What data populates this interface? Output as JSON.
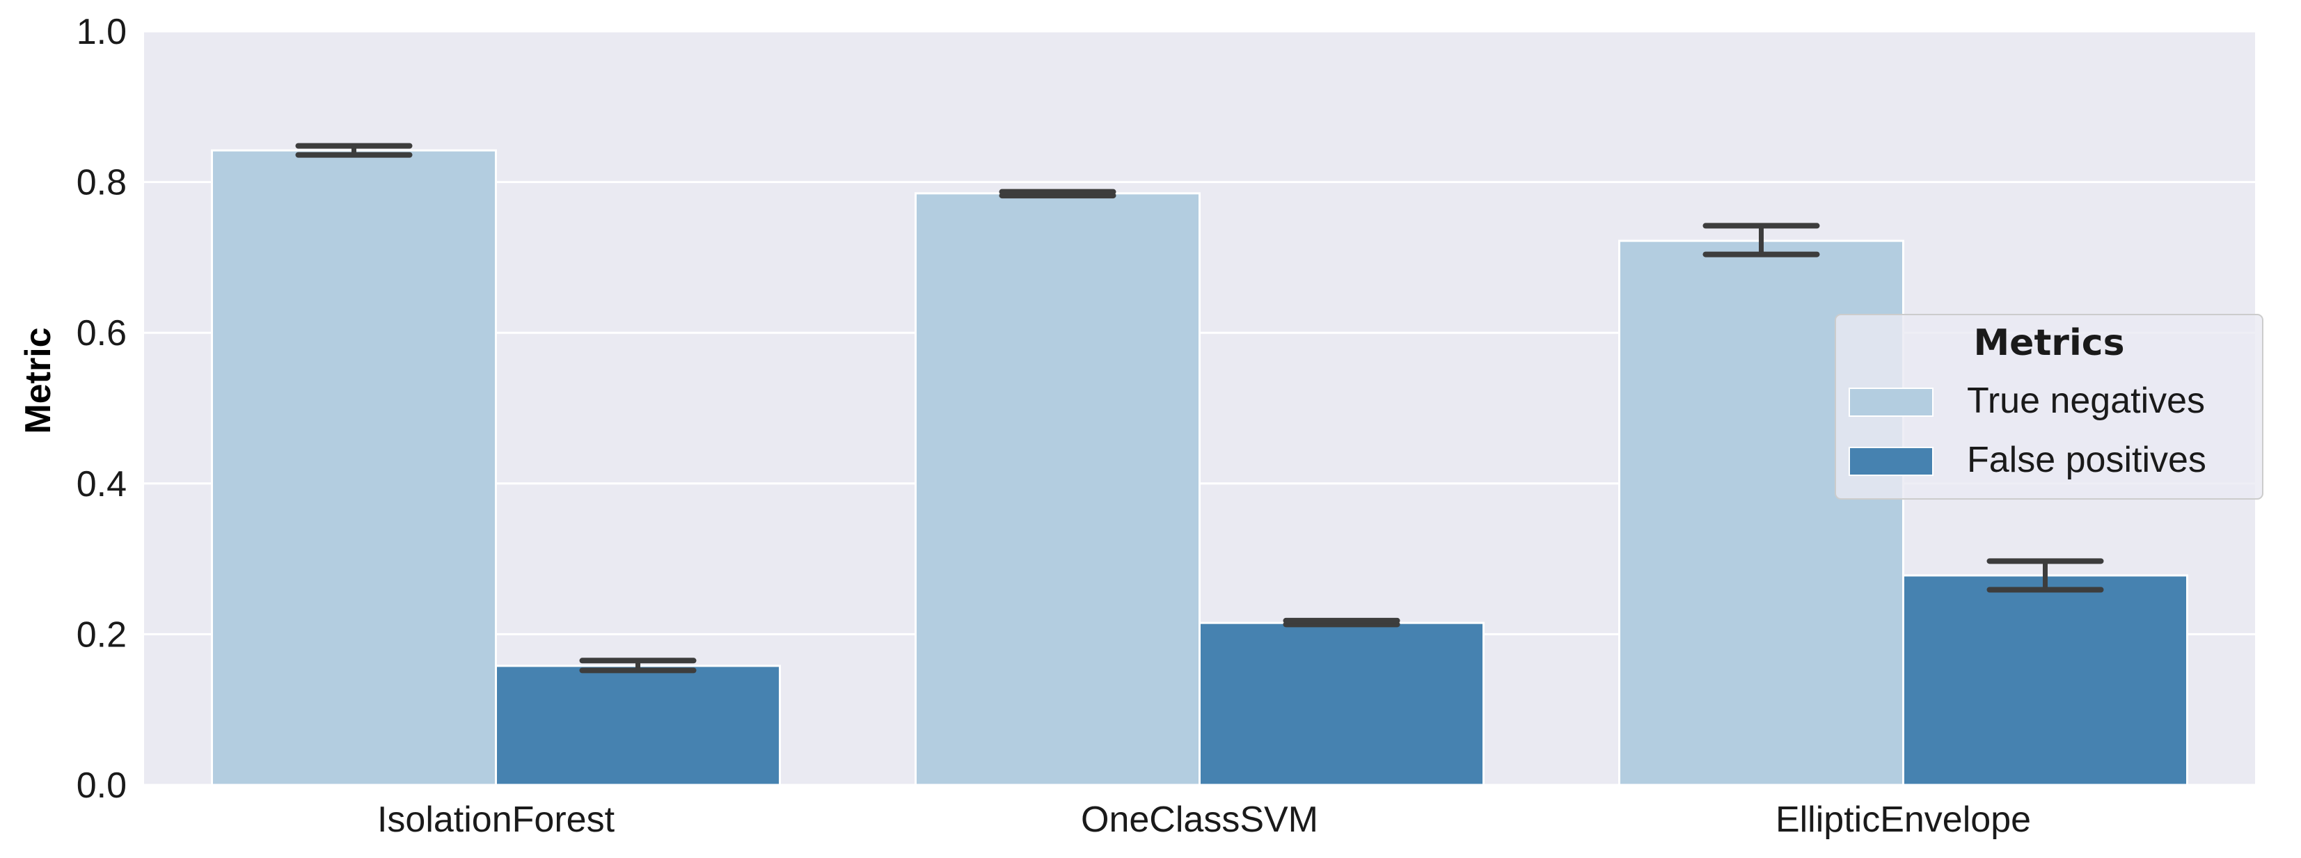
{
  "chart_data": {
    "type": "bar",
    "title": "",
    "xlabel": "",
    "ylabel": "Metric",
    "ylim": [
      0,
      1.0
    ],
    "yticks": [
      "0.0",
      "0.2",
      "0.4",
      "0.6",
      "0.8",
      "1.0"
    ],
    "grid": true,
    "categories": [
      "IsolationForest",
      "OneClassSVM",
      "EllipticEnvelope"
    ],
    "series": [
      {
        "name": "True negatives",
        "color": "#b3cde0",
        "values": [
          0.842,
          0.785,
          0.722
        ],
        "err_low": [
          0.836,
          0.782,
          0.704
        ],
        "err_high": [
          0.848,
          0.787,
          0.742
        ]
      },
      {
        "name": "False positives",
        "color": "#4682b0",
        "values": [
          0.158,
          0.215,
          0.278
        ],
        "err_low": [
          0.152,
          0.213,
          0.259
        ],
        "err_high": [
          0.165,
          0.218,
          0.297
        ]
      }
    ],
    "legend": {
      "title": "Metrics",
      "placement": "right"
    },
    "background_color": "#eaeaf2",
    "errorbar_color": "#3d3d3d"
  }
}
